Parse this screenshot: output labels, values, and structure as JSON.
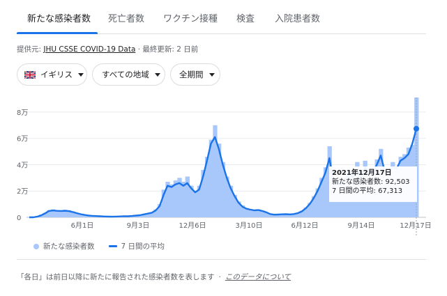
{
  "tabs": [
    {
      "label": "新たな感染者数",
      "active": true
    },
    {
      "label": "死亡者数",
      "active": false
    },
    {
      "label": "ワクチン接種",
      "active": false
    },
    {
      "label": "検査",
      "active": false
    },
    {
      "label": "入院患者数",
      "active": false
    }
  ],
  "source": {
    "prefix": "提供元: ",
    "link": "JHU CSSE COVID-19 Data",
    "suffix": " · 最終更新: 2 日前"
  },
  "filters": {
    "country": "イギリス",
    "region": "すべての地域",
    "period": "全期間"
  },
  "chart_data": {
    "type": "bar",
    "y_ticks": [
      "0",
      "2万",
      "4万",
      "6万",
      "8万"
    ],
    "y_values": [
      0,
      20000,
      40000,
      60000,
      80000
    ],
    "ylim": [
      0,
      90000
    ],
    "x_ticks": [
      "6月1日",
      "9月3日",
      "12月6日",
      "3月10日",
      "6月12日",
      "9月14日",
      "12月17日"
    ],
    "series": [
      {
        "name": "新たな感染者数",
        "values": [
          0,
          0,
          1000,
          2000,
          3500,
          5500,
          6000,
          5200,
          5000,
          5800,
          5400,
          4500,
          3400,
          2500,
          1800,
          1500,
          1200,
          1100,
          900,
          700,
          600,
          500,
          700,
          800,
          1000,
          900,
          1200,
          1500,
          1800,
          2500,
          3000,
          3800,
          6000,
          10000,
          21000,
          27000,
          25000,
          28000,
          30000,
          27000,
          31000,
          24000,
          20000,
          24000,
          36000,
          46000,
          59000,
          70000,
          56000,
          42000,
          31000,
          24000,
          17000,
          12000,
          9000,
          7000,
          6000,
          5500,
          6000,
          5200,
          4000,
          2500,
          2000,
          2200,
          2500,
          2600,
          2300,
          2700,
          3500,
          5000,
          7500,
          11000,
          16000,
          22000,
          30000,
          38000,
          54000,
          26000,
          27000,
          25000,
          30000,
          36000,
          33000,
          42000,
          33000,
          43000,
          37000,
          36000,
          44000,
          52000,
          34000,
          35000,
          42000,
          38000,
          46000,
          48000,
          53000,
          55000,
          93000
        ]
      },
      {
        "name": "7 日間の平均",
        "values": [
          0,
          0,
          500,
          1500,
          3000,
          4800,
          5200,
          4900,
          4800,
          4900,
          4700,
          4000,
          3200,
          2400,
          1800,
          1400,
          1100,
          950,
          800,
          650,
          550,
          500,
          600,
          700,
          850,
          800,
          1000,
          1300,
          1600,
          2200,
          2800,
          3500,
          5200,
          8500,
          17000,
          24000,
          23000,
          25000,
          26000,
          24000,
          26000,
          22000,
          19000,
          21000,
          31000,
          43000,
          56000,
          61000,
          52000,
          40000,
          30000,
          22000,
          16000,
          11000,
          8000,
          6500,
          5800,
          5300,
          5500,
          4800,
          3800,
          2500,
          2000,
          2100,
          2300,
          2400,
          2200,
          2500,
          3200,
          4500,
          6800,
          10000,
          14500,
          20000,
          27000,
          34000,
          45000,
          27000,
          26000,
          25000,
          29000,
          33000,
          31000,
          36000,
          31000,
          38000,
          35000,
          34000,
          40000,
          47000,
          35000,
          34000,
          38000,
          37000,
          43000,
          45000,
          48000,
          56000,
          67313
        ]
      }
    ],
    "point_colors": {
      "bar": "#a8c7fa",
      "line": "#1a73e8"
    }
  },
  "tooltip": {
    "date": "2021年12月17日",
    "cases": "新たな感染者数: 92,503",
    "avg": "7 日間の平均: 67,313"
  },
  "legend": {
    "cases": "新たな感染者数",
    "avg": "7 日間の平均"
  },
  "footnote": {
    "text": "「各日」は前日以降に新たに報告された感染者数を表します",
    "sep": "·",
    "link": "このデータについて"
  }
}
